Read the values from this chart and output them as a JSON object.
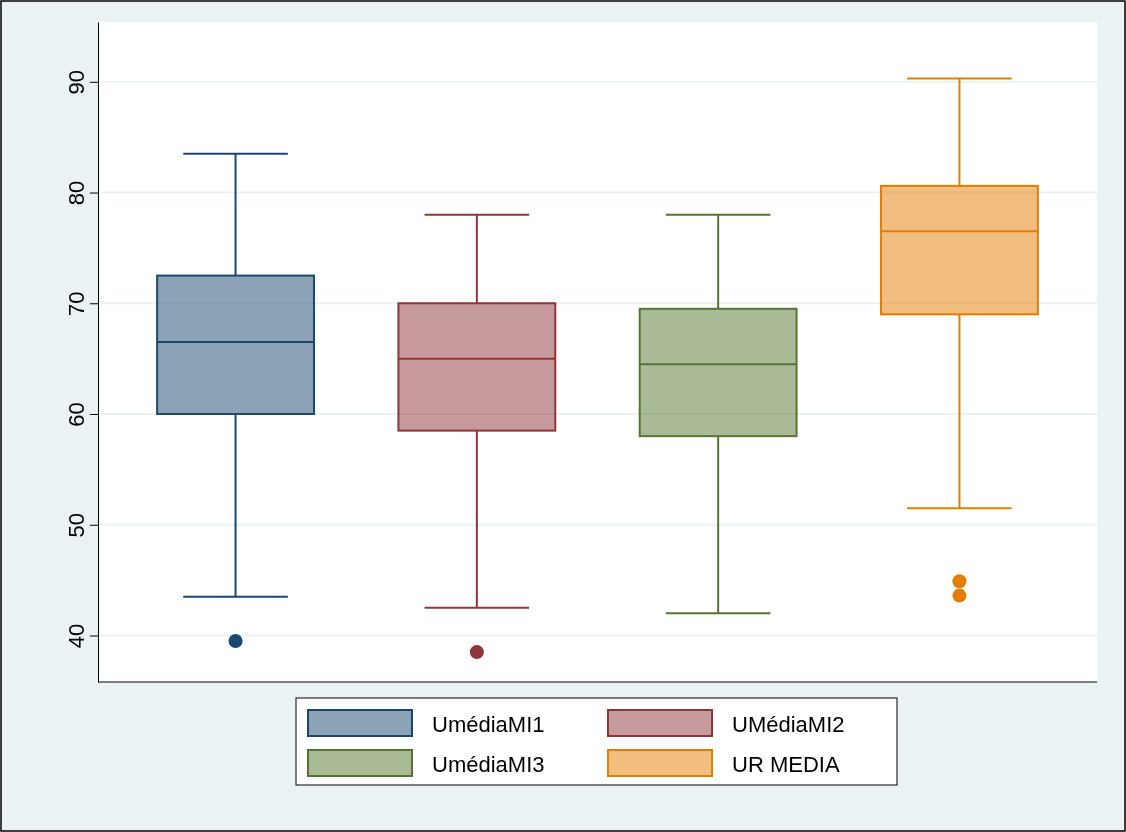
{
  "chart_data": {
    "type": "box",
    "categories": [
      null,
      null,
      null,
      null
    ],
    "ylim": [
      35.8,
      95.4
    ],
    "yticks": [
      40,
      50,
      60,
      70,
      80,
      90
    ],
    "grid": "y",
    "legend": "bottom",
    "series": [
      {
        "name": "UmédiaMI1",
        "color": "#1a476f",
        "boxes": [
          {
            "low": 43.5,
            "q1": 60,
            "median": 66.5,
            "q3": 72.5,
            "high": 83.5,
            "outliers": [
              39.5
            ]
          },
          null,
          null,
          null
        ]
      },
      {
        "name": "UMédiaMI2",
        "color": "#90353b",
        "boxes": [
          null,
          {
            "low": 42.5,
            "q1": 58.5,
            "median": 65,
            "q3": 70,
            "high": 78,
            "outliers": [
              38.5
            ]
          },
          null,
          null
        ]
      },
      {
        "name": "UmédiaMI3",
        "color": "#55752f",
        "boxes": [
          null,
          null,
          {
            "low": 42,
            "q1": 58,
            "median": 64.5,
            "q3": 69.5,
            "high": 78
          },
          null
        ]
      },
      {
        "name": "UR MEDIA",
        "color": "#e37e00",
        "boxes": [
          null,
          null,
          null,
          {
            "low": 51.5,
            "q1": 69,
            "median": 76.5,
            "q3": 80.6,
            "high": 90.3,
            "outliers": [
              44.9,
              43.6
            ]
          }
        ]
      }
    ]
  }
}
